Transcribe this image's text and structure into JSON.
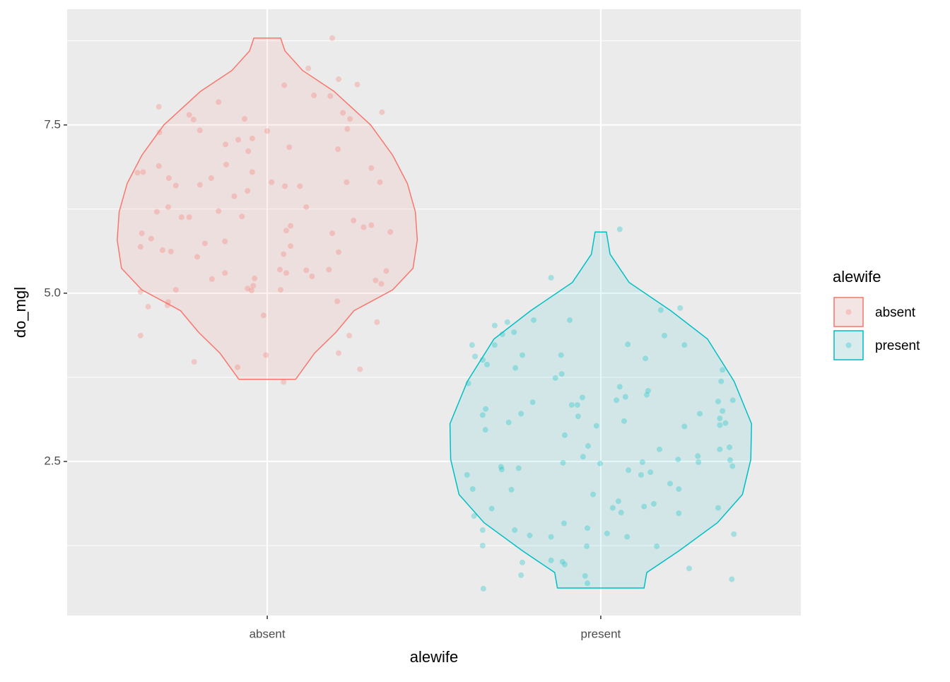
{
  "chart_data": {
    "type": "violin",
    "x_label": "alewife",
    "y_label": "do_mgl",
    "categories": [
      "absent",
      "present"
    ],
    "xlim": [
      0.4,
      2.6
    ],
    "ylim": [
      0.21,
      9.22
    ],
    "yticks": [
      2.5,
      {
        "value": 5,
        "label": "5.0"
      },
      7.5
    ],
    "minor_yticks": [
      1.25,
      3.75,
      6.25,
      8.75
    ],
    "grid": true,
    "legend": {
      "title": "alewife",
      "position": "right"
    },
    "series": [
      {
        "name": "absent",
        "color": "#F8766D",
        "violin": {
          "y": [
            8.79,
            8.6,
            8.31,
            8.0,
            7.5,
            7.05,
            6.63,
            6.21,
            5.79,
            5.37,
            5.05,
            4.74,
            4.42,
            4.11,
            3.72
          ],
          "width": [
            0.04,
            0.053,
            0.106,
            0.2,
            0.31,
            0.376,
            0.42,
            0.444,
            0.45,
            0.437,
            0.376,
            0.26,
            0.206,
            0.142,
            0.085
          ]
        },
        "points": {
          "x": [
            1.195,
            1.123,
            1.051,
            1.214,
            1.27,
            1.14,
            1.189,
            0.675,
            0.854,
            1.344,
            1.227,
            0.766,
            0.932,
            0.779,
            1.248,
            0.677,
            0.798,
            1.0,
            1.24,
            0.955,
            0.913,
            0.875,
            1.066,
            0.943,
            1.212,
            0.877,
            0.675,
            0.611,
            0.628,
            0.955,
            1.312,
            0.705,
            0.832,
            1.013,
            1.238,
            1.338,
            0.726,
            0.798,
            1.053,
            1.098,
            0.941,
            0.901,
            1.117,
            0.703,
            0.854,
            0.669,
            0.743,
            0.766,
            0.924,
            1.259,
            1.289,
            1.07,
            1.312,
            1.057,
            1.369,
            1.195,
            0.624,
            0.652,
            0.873,
            0.813,
            0.62,
            1.07,
            0.686,
            0.711,
            1.214,
            1.049,
            0.79,
            1.357,
            1.038,
            1.117,
            1.185,
            0.873,
            1.057,
            1.134,
            0.834,
            0.962,
            1.325,
            1.342,
            0.941,
            0.958,
            0.953,
            0.726,
            1.04,
            0.62,
            1.21,
            0.703,
            0.701,
            0.643,
            0.989,
            1.329,
            0.62,
            1.246,
            1.214,
            0.996,
            0.781,
            0.911,
            1.278,
            1.049
          ],
          "y": [
            8.79,
            8.34,
            8.09,
            8.18,
            8.1,
            7.94,
            7.93,
            7.77,
            7.84,
            7.69,
            7.68,
            7.65,
            7.59,
            7.58,
            7.59,
            7.39,
            7.42,
            7.41,
            7.44,
            7.3,
            7.28,
            7.21,
            7.17,
            7.11,
            7.14,
            6.91,
            6.89,
            6.79,
            6.8,
            6.8,
            6.86,
            6.71,
            6.71,
            6.65,
            6.65,
            6.65,
            6.6,
            6.61,
            6.59,
            6.59,
            6.52,
            6.44,
            6.28,
            6.28,
            6.22,
            6.21,
            6.13,
            6.13,
            6.14,
            6.08,
            5.98,
            6.0,
            6.01,
            5.93,
            5.91,
            5.89,
            5.89,
            5.81,
            5.77,
            5.74,
            5.69,
            5.7,
            5.64,
            5.62,
            5.61,
            5.58,
            5.54,
            5.33,
            5.35,
            5.34,
            5.35,
            5.3,
            5.3,
            5.25,
            5.21,
            5.22,
            5.19,
            5.14,
            5.07,
            5.11,
            5.04,
            5.05,
            5.05,
            5.02,
            4.88,
            4.87,
            4.82,
            4.8,
            4.67,
            4.57,
            4.37,
            4.37,
            4.11,
            4.08,
            3.98,
            3.9,
            3.87,
            3.68
          ]
        }
      },
      {
        "name": "present",
        "color": "#00BFC4",
        "violin": {
          "y": [
            5.91,
            5.58,
            5.16,
            4.74,
            4.32,
            3.69,
            3.06,
            2.53,
            2.01,
            1.59,
            1.17,
            0.85,
            0.62
          ],
          "width": [
            0.017,
            0.028,
            0.085,
            0.21,
            0.32,
            0.4,
            0.452,
            0.45,
            0.425,
            0.35,
            0.234,
            0.138,
            0.13
          ]
        },
        "points": {
          "x": [
            2.057,
            1.851,
            2.238,
            2.18,
            1.907,
            1.799,
            1.72,
            1.682,
            1.74,
            1.705,
            2.191,
            1.614,
            1.682,
            2.081,
            2.251,
            1.765,
            1.623,
            1.881,
            2.134,
            1.646,
            1.659,
            1.744,
            2.365,
            1.883,
            1.864,
            1.603,
            2.361,
            2.057,
            2.142,
            2.138,
            1.945,
            2.074,
            2.396,
            2.047,
            2.352,
            1.796,
            1.913,
            1.93,
            1.655,
            2.365,
            1.761,
            1.646,
            2.297,
            1.932,
            2.357,
            2.07,
            1.724,
            2.374,
            2.357,
            1.987,
            2.251,
            1.654,
            1.892,
            1.962,
            2.386,
            2.176,
            2.357,
            1.947,
            2.291,
            2.232,
            2.388,
            2.293,
            2.395,
            1.887,
            1.998,
            2.125,
            1.701,
            1.754,
            1.703,
            2.083,
            2.149,
            2.121,
            1.599,
            2.208,
            2.234,
            1.616,
            1.732,
            1.977,
            2.053,
            2.159,
            2.13,
            2.352,
            2.036,
            1.673,
            2.061,
            2.234,
            1.62,
            1.89,
            1.96,
            1.742,
            1.646,
            2.019,
            2.399,
            1.787,
            1.851,
            2.079,
            1.646,
            1.958,
            2.168,
            1.765,
            1.851,
            1.885,
            1.892,
            2.265,
            1.761,
            1.953,
            2.393,
            1.96,
            1.648
          ],
          "y": [
            5.95,
            5.23,
            4.78,
            4.75,
            4.6,
            4.6,
            4.57,
            4.52,
            4.42,
            4.39,
            4.37,
            4.23,
            4.23,
            4.24,
            4.23,
            4.08,
            4.06,
            4.08,
            4.03,
            4.01,
            3.94,
            3.89,
            3.86,
            3.8,
            3.74,
            3.66,
            3.69,
            3.61,
            3.55,
            3.49,
            3.45,
            3.46,
            3.41,
            3.41,
            3.39,
            3.38,
            3.34,
            3.34,
            3.28,
            3.25,
            3.21,
            3.19,
            3.21,
            3.17,
            3.14,
            3.1,
            3.08,
            3.07,
            3.04,
            3.03,
            3.02,
            2.97,
            2.89,
            2.73,
            2.71,
            2.68,
            2.68,
            2.57,
            2.58,
            2.53,
            2.52,
            2.49,
            2.43,
            2.48,
            2.47,
            2.49,
            2.42,
            2.4,
            2.38,
            2.37,
            2.34,
            2.3,
            2.3,
            2.17,
            2.09,
            2.09,
            2.08,
            2.01,
            1.91,
            1.87,
            1.83,
            1.81,
            1.81,
            1.8,
            1.74,
            1.73,
            1.69,
            1.58,
            1.51,
            1.48,
            1.48,
            1.43,
            1.42,
            1.4,
            1.38,
            1.38,
            1.25,
            1.24,
            1.24,
            1.0,
            1.03,
            1.01,
            0.97,
            0.91,
            0.81,
            0.8,
            0.75,
            0.69,
            0.61
          ]
        }
      }
    ]
  }
}
